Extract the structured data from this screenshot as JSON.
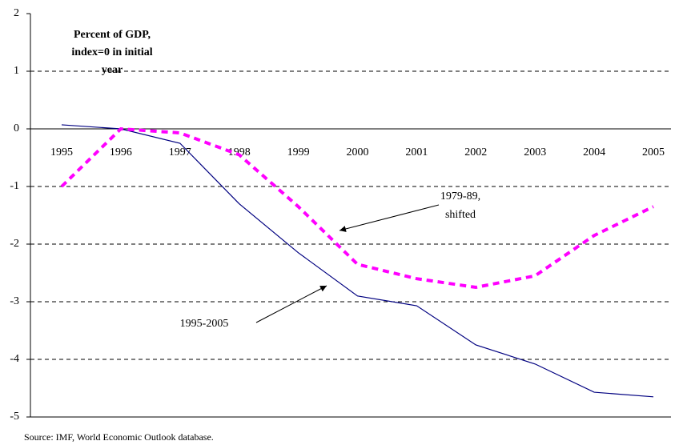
{
  "chart_data": {
    "type": "line",
    "subtitle": [
      "Percent of GDP,",
      "index=0 in initial",
      "year"
    ],
    "categories": [
      "1995",
      "1996",
      "1997",
      "1998",
      "1999",
      "2000",
      "2001",
      "2002",
      "2003",
      "2004",
      "2005"
    ],
    "series": [
      {
        "color": "#000080",
        "dashed": false,
        "values": [
          0.07,
          0.0,
          -0.25,
          -1.3,
          -2.15,
          -2.9,
          -3.07,
          -3.75,
          -4.08,
          -4.57,
          -4.65
        ]
      },
      {
        "color": "#ff00ff",
        "dashed": true,
        "values": [
          -1.0,
          0.0,
          -0.07,
          -0.45,
          -1.35,
          -2.35,
          -2.6,
          -2.75,
          -2.55,
          -1.85,
          -1.35
        ]
      }
    ],
    "annotations": [
      {
        "lines": [
          "1979-89,",
          "shifted"
        ]
      },
      {
        "lines": [
          "1995-2005"
        ]
      }
    ],
    "ylim": [
      -5,
      2
    ],
    "yticks": [
      -5,
      -4,
      -3,
      -2,
      -1,
      0,
      1,
      2
    ],
    "grid": true,
    "source": "Source: IMF, World Economic Outlook database."
  }
}
